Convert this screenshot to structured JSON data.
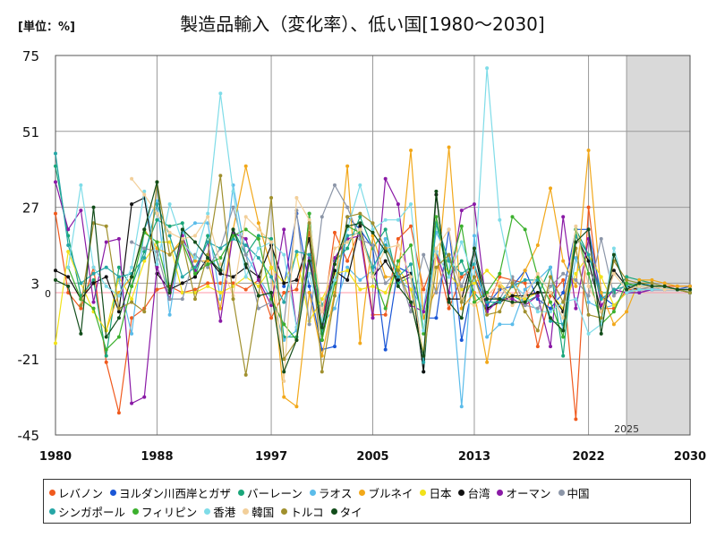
{
  "unit_label": "[単位：%]",
  "chart_data": {
    "type": "line",
    "title": "製造品輸入（変化率）、低い国[1980～2030]",
    "ylim": [
      -45,
      75
    ],
    "yticks": [
      75,
      51,
      27,
      3,
      -21,
      -45
    ],
    "zero_label": "0",
    "xlim": [
      1980,
      2030
    ],
    "xticks": [
      1980,
      1988,
      1997,
      2005,
      2013,
      2022,
      2030
    ],
    "forecast_start": 2025,
    "forecast_label": "2025",
    "series": [
      {
        "name": "レバノン",
        "color": "#f05a1e",
        "values": [
          25,
          0,
          -5,
          8,
          -22,
          -38,
          -8,
          -5,
          1,
          2,
          0,
          1,
          3,
          3,
          3,
          1,
          4,
          -8,
          0,
          1,
          19,
          -10,
          19,
          10,
          20,
          -7,
          -7,
          17,
          21,
          1,
          12,
          -5,
          5,
          8,
          -5,
          5,
          4,
          3,
          -17,
          -1,
          4,
          -40,
          27,
          -5,
          -5,
          1,
          1,
          2,
          2,
          2,
          2
        ]
      },
      {
        "name": "ヨルダン川西岸とガザ",
        "color": "#1a56d6",
        "values": [
          null,
          null,
          null,
          null,
          null,
          null,
          null,
          null,
          null,
          null,
          null,
          null,
          null,
          null,
          null,
          null,
          null,
          null,
          2,
          25,
          2,
          -18,
          -17,
          24,
          20,
          14,
          -18,
          8,
          6,
          -8,
          -8,
          20,
          -15,
          5,
          -4,
          1,
          2,
          7,
          -2,
          -5,
          0,
          20,
          20,
          -1,
          -4,
          0,
          0,
          1,
          1,
          1,
          2
        ]
      },
      {
        "name": "バーレーン",
        "color": "#1aa67a",
        "values": [
          40,
          18,
          -1,
          4,
          -20,
          8,
          2,
          13,
          23,
          21,
          22,
          5,
          18,
          7,
          20,
          12,
          18,
          17,
          -14,
          -14,
          25,
          -13,
          10,
          14,
          24,
          14,
          20,
          3,
          5,
          -25,
          22,
          5,
          10,
          0,
          -5,
          -2,
          -1,
          -3,
          -1,
          8,
          -20,
          20,
          12,
          0,
          0,
          5,
          4,
          3,
          2,
          1,
          0
        ]
      },
      {
        "name": "ラオス",
        "color": "#5bbcea",
        "values": [
          null,
          null,
          null,
          null,
          null,
          4,
          -13,
          20,
          29,
          -7,
          19,
          22,
          22,
          -2,
          34,
          12,
          5,
          -2,
          -15,
          -12,
          11,
          -10,
          -5,
          8,
          4,
          7,
          17,
          4,
          1,
          -5,
          19,
          11,
          -36,
          18,
          -14,
          -10,
          -10,
          1,
          4,
          8,
          -12,
          11,
          -3,
          -5,
          -4,
          0,
          2,
          3,
          2,
          1,
          0
        ]
      },
      {
        "name": "ブルネイ",
        "color": "#f2a81a",
        "values": [
          null,
          null,
          null,
          null,
          -12,
          0,
          5,
          20,
          14,
          12,
          17,
          10,
          10,
          -5,
          20,
          40,
          22,
          8,
          -33,
          -36,
          0,
          -20,
          0,
          40,
          -16,
          18,
          5,
          5,
          45,
          -8,
          1,
          46,
          -5,
          0,
          -22,
          2,
          -2,
          7,
          15,
          33,
          10,
          2,
          45,
          0,
          -10,
          -6,
          4,
          4,
          3,
          2,
          2
        ]
      },
      {
        "name": "日本",
        "color": "#f2e21a",
        "values": [
          -16,
          13,
          3,
          -6,
          -12,
          5,
          -2,
          10,
          16,
          16,
          0,
          0,
          2,
          0,
          2,
          5,
          2,
          8,
          3,
          12,
          -9,
          -2,
          6,
          7,
          1,
          2,
          0,
          8,
          1,
          -19,
          12,
          6,
          1,
          3,
          7,
          3,
          -1,
          -2,
          0,
          0,
          -5,
          6,
          12,
          5,
          -4,
          0,
          1,
          2,
          2,
          1,
          1
        ]
      },
      {
        "name": "台湾",
        "color": "#111111",
        "values": [
          7,
          5,
          -2,
          3,
          5,
          -6,
          28,
          30,
          6,
          1,
          3,
          5,
          11,
          6,
          5,
          8,
          5,
          15,
          3,
          4,
          17,
          -15,
          7,
          4,
          21,
          5,
          10,
          4,
          6,
          -25,
          31,
          -2,
          -2,
          13,
          -5,
          -3,
          -1,
          -1,
          0,
          0,
          -6,
          18,
          10,
          -6,
          7,
          2,
          1,
          1,
          1,
          1,
          0
        ]
      },
      {
        "name": "オーマン",
        "color": "#8a1aa6",
        "values": [
          35,
          20,
          26,
          -3,
          16,
          17,
          -35,
          -33,
          8,
          -2,
          18,
          7,
          16,
          -9,
          19,
          17,
          4,
          -4,
          20,
          -11,
          12,
          -10,
          11,
          17,
          18,
          -8,
          36,
          28,
          -4,
          -6,
          13,
          0,
          26,
          28,
          -6,
          -2,
          -2,
          -4,
          -1,
          -17,
          24,
          -5,
          17,
          -4,
          1,
          0,
          0,
          1,
          1,
          1,
          1
        ]
      },
      {
        "name": "中国",
        "color": "#8c96a8",
        "values": [
          null,
          null,
          null,
          null,
          null,
          null,
          16,
          14,
          13,
          -2,
          -2,
          12,
          8,
          14,
          27,
          12,
          -5,
          -3,
          -10,
          26,
          -10,
          24,
          34,
          27,
          17,
          15,
          3,
          7,
          -6,
          12,
          0,
          12,
          2,
          13,
          -1,
          -2,
          5,
          -4,
          -5,
          2,
          6,
          4,
          -1,
          17,
          -1,
          3,
          1,
          2,
          2,
          1,
          1
        ]
      },
      {
        "name": "シンガポール",
        "color": "#26a6a6",
        "values": [
          44,
          15,
          3,
          6,
          8,
          5,
          6,
          11,
          28,
          18,
          5,
          8,
          16,
          14,
          17,
          15,
          11,
          5,
          -3,
          13,
          12,
          -4,
          4,
          18,
          19,
          8,
          15,
          5,
          9,
          -22,
          22,
          10,
          6,
          9,
          -3,
          -3,
          2,
          4,
          4,
          -9,
          -10,
          18,
          12,
          -2,
          1,
          2,
          3,
          2,
          1,
          1,
          0
        ]
      },
      {
        "name": "フィリピン",
        "color": "#3cb02e",
        "values": [
          null,
          8,
          -2,
          -5,
          -18,
          -14,
          2,
          19,
          16,
          0,
          16,
          6,
          9,
          11,
          18,
          20,
          17,
          -2,
          -10,
          -15,
          25,
          -15,
          3,
          21,
          19,
          6,
          -5,
          10,
          15,
          -13,
          24,
          6,
          21,
          -3,
          0,
          6,
          24,
          20,
          5,
          -3,
          -14,
          20,
          6,
          -10,
          -6,
          3,
          2,
          2,
          2,
          1,
          0
        ]
      },
      {
        "name": "香港",
        "color": "#7fdce8",
        "values": [
          null,
          8,
          34,
          8,
          2,
          -1,
          8,
          32,
          9,
          28,
          16,
          11,
          25,
          63,
          32,
          5,
          14,
          16,
          12,
          -11,
          6,
          -9,
          4,
          20,
          34,
          20,
          23,
          23,
          28,
          -12,
          13,
          5,
          16,
          4,
          71,
          23,
          3,
          -1,
          -6,
          -6,
          -3,
          -2,
          -13,
          -10,
          14,
          0,
          1,
          1,
          1,
          1,
          1
        ]
      },
      {
        "name": "韓国",
        "color": "#f2cf9a",
        "values": [
          null,
          null,
          null,
          null,
          null,
          null,
          36,
          31,
          25,
          19,
          17,
          18,
          24,
          9,
          -1,
          24,
          20,
          16,
          -28,
          30,
          23,
          -6,
          14,
          16,
          20,
          5,
          14,
          15,
          5,
          -20,
          14,
          20,
          -2,
          -4,
          -1,
          3,
          -4,
          -1,
          6,
          0,
          -8,
          21,
          2,
          -6,
          6,
          1,
          2,
          2,
          1,
          1,
          1
        ]
      },
      {
        "name": "トルコ",
        "color": "#a0902e",
        "values": [
          null,
          null,
          -4,
          22,
          21,
          -5,
          -3,
          -6,
          35,
          12,
          16,
          -2,
          12,
          37,
          -2,
          -26,
          -1,
          30,
          -21,
          -15,
          22,
          -25,
          -1,
          24,
          25,
          22,
          14,
          7,
          -3,
          -20,
          8,
          12,
          -3,
          5,
          -7,
          -6,
          3,
          -6,
          -12,
          5,
          -3,
          14,
          -7,
          -8,
          10,
          4,
          3,
          3,
          2,
          1,
          0
        ]
      },
      {
        "name": "タイ",
        "color": "#124d1a",
        "values": [
          4,
          2,
          -13,
          27,
          -14,
          -8,
          5,
          20,
          35,
          0,
          20,
          16,
          11,
          7,
          20,
          9,
          -1,
          0,
          -25,
          -15,
          10,
          -11,
          9,
          21,
          22,
          19,
          13,
          2,
          -3,
          -20,
          32,
          -3,
          -8,
          14,
          -2,
          -2,
          -3,
          -3,
          3,
          -8,
          -12,
          16,
          20,
          -13,
          12,
          1,
          3,
          2,
          2,
          1,
          1
        ]
      }
    ]
  }
}
